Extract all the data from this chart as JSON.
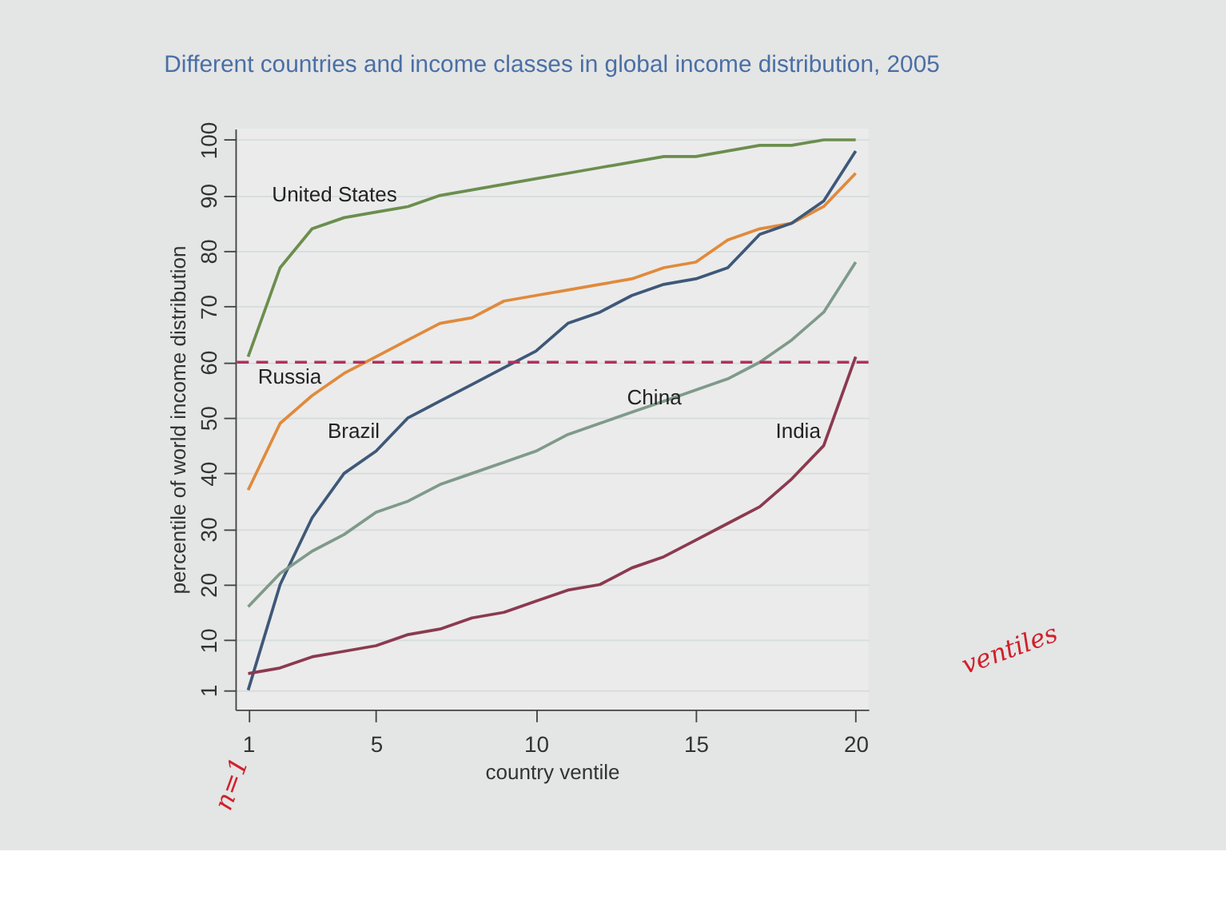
{
  "chart_data": {
    "type": "line",
    "title": "Different countries and income classes in global income distribution, 2005",
    "xlabel": "country ventile",
    "ylabel": "percentile of world income distribution",
    "x": [
      1,
      2,
      3,
      4,
      5,
      6,
      7,
      8,
      9,
      10,
      11,
      12,
      13,
      14,
      15,
      16,
      17,
      18,
      19,
      20
    ],
    "series": [
      {
        "name": "United States",
        "color": "#6b8e4e",
        "values": [
          61,
          77,
          84,
          86,
          87,
          88,
          90,
          91,
          92,
          93,
          94,
          95,
          96,
          97,
          97,
          98,
          99,
          99,
          100,
          100
        ]
      },
      {
        "name": "Russia",
        "color": "#e08a3c",
        "values": [
          37,
          49,
          54,
          58,
          61,
          64,
          67,
          68,
          71,
          72,
          73,
          74,
          75,
          77,
          78,
          82,
          84,
          85,
          88,
          94
        ]
      },
      {
        "name": "Brazil",
        "color": "#3e5878",
        "values": [
          1,
          20,
          32,
          40,
          44,
          50,
          53,
          56,
          59,
          62,
          67,
          69,
          72,
          74,
          75,
          77,
          83,
          85,
          89,
          98
        ]
      },
      {
        "name": "China",
        "color": "#7f9a8a",
        "values": [
          16,
          22,
          26,
          29,
          33,
          35,
          38,
          40,
          42,
          44,
          47,
          49,
          51,
          53,
          55,
          57,
          60,
          64,
          69,
          78
        ]
      },
      {
        "name": "India",
        "color": "#8b3a50",
        "values": [
          4,
          5,
          7,
          8,
          9,
          11,
          12,
          14,
          15,
          17,
          19,
          20,
          23,
          25,
          28,
          31,
          34,
          39,
          45,
          61
        ]
      }
    ],
    "ref_lines": [
      {
        "axis": "y",
        "value": 60,
        "color": "#b03060",
        "line_style": "dashed"
      }
    ],
    "xlim": [
      0.6,
      20.4
    ],
    "xticks": [
      1,
      5,
      10,
      15,
      20
    ],
    "ylim": [
      -2.5,
      102
    ],
    "yticks": [
      1,
      10,
      20,
      30,
      40,
      50,
      60,
      70,
      80,
      90,
      100
    ],
    "grid": "y",
    "marker": "none",
    "line_style": "solid",
    "annotations": [
      "ventiles",
      "n=1"
    ]
  }
}
